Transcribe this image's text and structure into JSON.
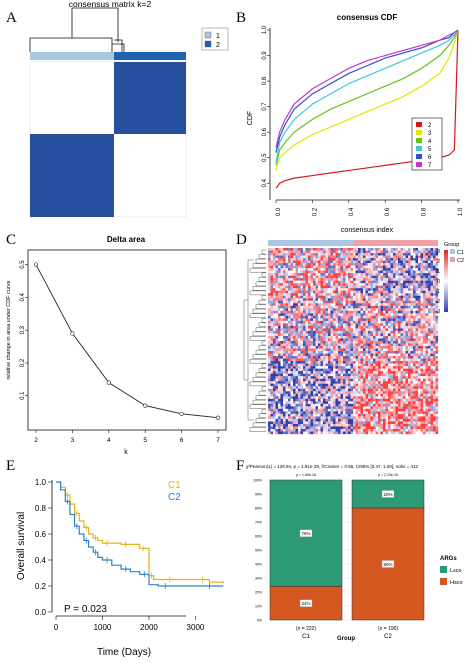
{
  "panels": {
    "A": {
      "label": "A",
      "title": "consensus matrix k=2",
      "legend": [
        "1",
        "2"
      ],
      "colors": {
        "cluster1": "#a9c8e0",
        "cluster2": "#1f63b0",
        "high": "#264fa0",
        "low": "#ffffff"
      }
    },
    "B": {
      "label": "B",
      "title": "consensus CDF",
      "xlabel": "consensus index",
      "ylabel": "CDF",
      "xticks": [
        "0.0",
        "0.2",
        "0.4",
        "0.6",
        "0.8",
        "1.0"
      ],
      "yticks": [
        "0.4",
        "0.5",
        "0.6",
        "0.7",
        "0.8",
        "0.9",
        "1.0"
      ],
      "legend": [
        "2",
        "3",
        "4",
        "5",
        "6",
        "7"
      ]
    },
    "C": {
      "label": "C",
      "title": "Delta area",
      "xlabel": "k",
      "ylabel": "relative change in area under CDF curve",
      "xticks": [
        "2",
        "3",
        "4",
        "5",
        "6",
        "7"
      ],
      "yticks": [
        "0.1",
        "0.2",
        "0.3",
        "0.4",
        "0.5"
      ]
    },
    "D": {
      "label": "D",
      "legend_title": "Group",
      "legend_items": [
        "C1",
        "C2"
      ],
      "scale_ticks": [
        "3",
        "2",
        "1",
        "0",
        "-1",
        "-2",
        "-3"
      ]
    },
    "E": {
      "label": "E",
      "ylabel": "Overall survival",
      "xlabel": "Time (Days)",
      "xticks": [
        "0",
        "1000",
        "2000",
        "3000"
      ],
      "yticks": [
        "0.0",
        "0.2",
        "0.4",
        "0.6",
        "0.8",
        "1.0"
      ],
      "legend": [
        "C1",
        "C2"
      ],
      "pvalue": "P = 0.023"
    },
    "F": {
      "label": "F",
      "stat": "χ²Pearson(1) = 128.94, p = 1.91e-29, V̂Cramer = 0.56, CI95% [0.47, 1.00], nobs = 412",
      "pvals": [
        "p = 1.69e-16",
        "p = 2.23e-16"
      ],
      "xlabel": "Group",
      "categories": [
        "C1",
        "C2"
      ],
      "counts": [
        "(n = 222)",
        "(n = 190)"
      ],
      "yticks": [
        "0%",
        "10%",
        "20%",
        "30%",
        "40%",
        "50%",
        "60%",
        "70%",
        "80%",
        "90%",
        "100%"
      ],
      "legend_title": "ARGs",
      "legend_items": [
        "Lsco",
        "Hsco"
      ],
      "segment_labels": {
        "C1": [
          "76%",
          "24%"
        ],
        "C2": [
          "20%",
          "80%"
        ]
      }
    }
  },
  "chart_data": [
    {
      "type": "line",
      "title": "consensus CDF",
      "xlabel": "consensus index",
      "ylabel": "CDF",
      "xlim": [
        0,
        1
      ],
      "ylim": [
        0.35,
        1.0
      ],
      "x": [
        0,
        0.02,
        0.05,
        0.1,
        0.2,
        0.3,
        0.4,
        0.5,
        0.6,
        0.7,
        0.8,
        0.9,
        0.95,
        0.98,
        1.0
      ],
      "series": [
        {
          "name": "2",
          "color": "#d7191c",
          "values": [
            0.38,
            0.4,
            0.41,
            0.42,
            0.43,
            0.44,
            0.45,
            0.46,
            0.47,
            0.48,
            0.49,
            0.5,
            0.51,
            0.53,
            1.0
          ]
        },
        {
          "name": "3",
          "color": "#e6e600",
          "values": [
            0.45,
            0.5,
            0.52,
            0.55,
            0.59,
            0.62,
            0.65,
            0.68,
            0.71,
            0.74,
            0.78,
            0.83,
            0.89,
            0.95,
            1.0
          ]
        },
        {
          "name": "4",
          "color": "#66c219",
          "values": [
            0.47,
            0.53,
            0.56,
            0.6,
            0.65,
            0.69,
            0.72,
            0.75,
            0.78,
            0.81,
            0.85,
            0.9,
            0.94,
            0.97,
            1.0
          ]
        },
        {
          "name": "5",
          "color": "#3ec6e0",
          "values": [
            0.48,
            0.56,
            0.6,
            0.65,
            0.71,
            0.75,
            0.79,
            0.82,
            0.85,
            0.88,
            0.91,
            0.94,
            0.96,
            0.98,
            1.0
          ]
        },
        {
          "name": "6",
          "color": "#3050c8",
          "values": [
            0.52,
            0.58,
            0.63,
            0.69,
            0.75,
            0.79,
            0.83,
            0.86,
            0.89,
            0.91,
            0.93,
            0.96,
            0.97,
            0.99,
            1.0
          ]
        },
        {
          "name": "7",
          "color": "#c838c8",
          "values": [
            0.54,
            0.6,
            0.65,
            0.71,
            0.77,
            0.81,
            0.85,
            0.88,
            0.9,
            0.92,
            0.94,
            0.96,
            0.98,
            0.99,
            1.0
          ]
        }
      ],
      "legend": "bottom-right"
    },
    {
      "type": "line",
      "title": "Delta area",
      "xlabel": "k",
      "ylabel": "relative change in area under CDF curve",
      "x": [
        2,
        3,
        4,
        5,
        6,
        7
      ],
      "values": [
        0.5,
        0.29,
        0.14,
        0.07,
        0.045,
        0.033
      ],
      "ylim": [
        0.02,
        0.52
      ]
    },
    {
      "type": "line",
      "xlabel": "Time (Days)",
      "ylabel": "Overall survival",
      "xlim": [
        0,
        3700
      ],
      "ylim": [
        0,
        1
      ],
      "series": [
        {
          "name": "C1",
          "color": "#e6b319",
          "x": [
            0,
            100,
            200,
            300,
            400,
            500,
            600,
            700,
            800,
            900,
            1000,
            1200,
            1400,
            1600,
            1800,
            1950,
            2000,
            2100,
            2300,
            2600,
            3000,
            3300,
            3600
          ],
          "values": [
            1.0,
            0.96,
            0.9,
            0.83,
            0.76,
            0.7,
            0.65,
            0.6,
            0.57,
            0.55,
            0.53,
            0.53,
            0.52,
            0.52,
            0.49,
            0.49,
            0.28,
            0.25,
            0.25,
            0.25,
            0.25,
            0.23,
            0.22
          ]
        },
        {
          "name": "C2",
          "color": "#2f80c8",
          "x": [
            0,
            100,
            200,
            300,
            400,
            500,
            600,
            700,
            800,
            900,
            1000,
            1200,
            1400,
            1600,
            1800,
            2000,
            2200,
            2500,
            3000,
            3600
          ],
          "values": [
            1.0,
            0.94,
            0.85,
            0.75,
            0.66,
            0.6,
            0.55,
            0.5,
            0.46,
            0.42,
            0.4,
            0.36,
            0.33,
            0.31,
            0.29,
            0.21,
            0.2,
            0.2,
            0.2,
            0.2
          ]
        }
      ],
      "annotations": [
        "P = 0.023"
      ]
    },
    {
      "type": "bar",
      "stacked": true,
      "categories": [
        "C1",
        "C2"
      ],
      "series": [
        {
          "name": "Hsco",
          "color": "#d4571f",
          "values": [
            24,
            80
          ]
        },
        {
          "name": "Lsco",
          "color": "#2b9a75",
          "values": [
            76,
            20
          ]
        }
      ],
      "ylim": [
        0,
        100
      ],
      "xlabel": "Group"
    }
  ]
}
